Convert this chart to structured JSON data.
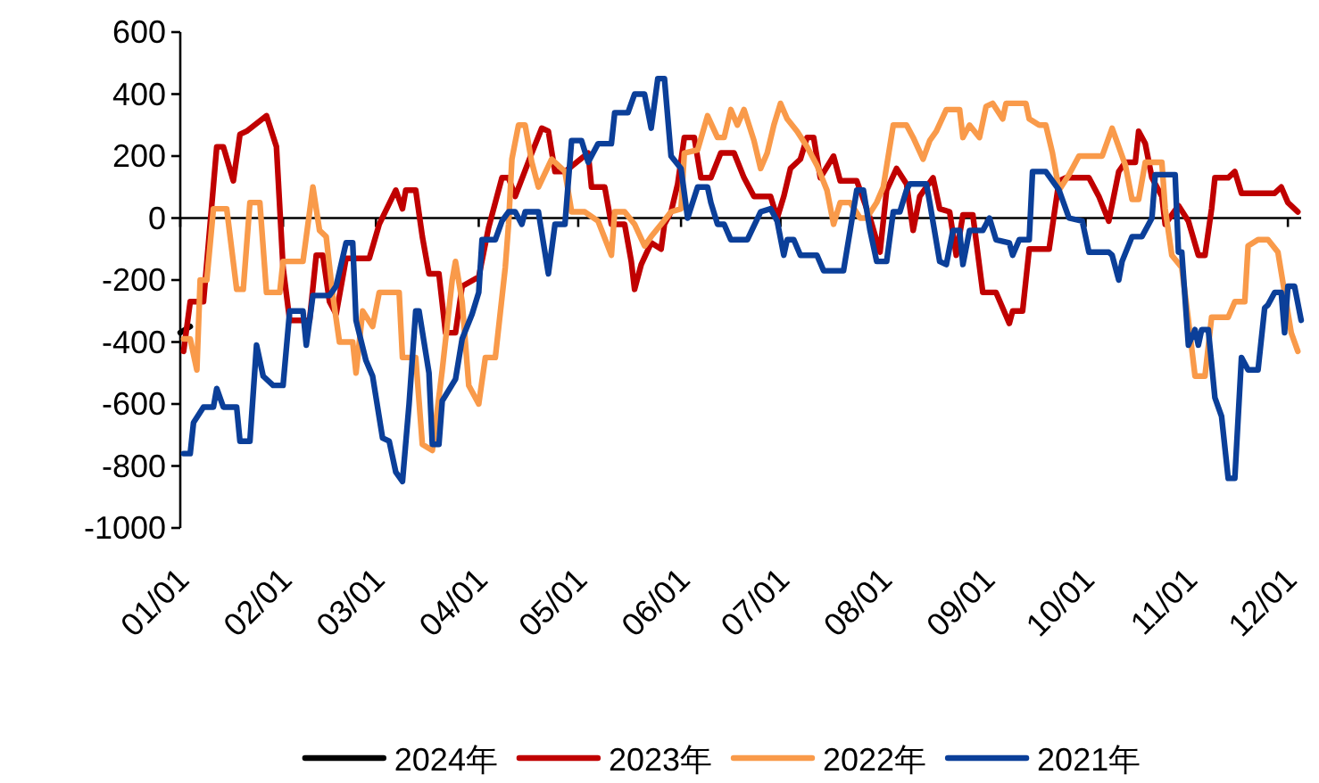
{
  "chart_data": {
    "type": "line",
    "legend": "bottom",
    "xlim": [
      "--01-01",
      "--12-05"
    ],
    "ylim": [
      -1000,
      600
    ],
    "yticks": [
      -1000,
      -800,
      -600,
      -400,
      -200,
      0,
      200,
      400,
      600
    ],
    "xticks": [
      {
        "value": "--01-01",
        "label": "01/01"
      },
      {
        "value": "--02-01",
        "label": "02/01"
      },
      {
        "value": "--03-01",
        "label": "03/01"
      },
      {
        "value": "--04-01",
        "label": "04/01"
      },
      {
        "value": "--05-01",
        "label": "05/01"
      },
      {
        "value": "--06-01",
        "label": "06/01"
      },
      {
        "value": "--07-01",
        "label": "07/01"
      },
      {
        "value": "--08-01",
        "label": "08/01"
      },
      {
        "value": "--09-01",
        "label": "09/01"
      },
      {
        "value": "--10-01",
        "label": "10/01"
      },
      {
        "value": "--11-01",
        "label": "11/01"
      },
      {
        "value": "--12-01",
        "label": "12/01"
      }
    ],
    "series": [
      {
        "name": "2024年",
        "color": "#000000",
        "x": [
          "--01-01",
          "--01-04"
        ],
        "values": [
          -370,
          -350
        ]
      },
      {
        "name": "2023年",
        "color": "#c00000",
        "x": [
          "--01-02",
          "--01-04",
          "--01-08",
          "--01-12",
          "--01-14",
          "--01-17",
          "--01-19",
          "--01-21",
          "--01-27",
          "--01-30",
          "--02-01",
          "--02-03",
          "--02-09",
          "--02-11",
          "--02-13",
          "--02-15",
          "--02-17",
          "--02-20",
          "--02-27",
          "--03-02",
          "--03-07",
          "--03-09",
          "--03-10",
          "--03-13",
          "--03-15",
          "--03-17",
          "--03-20",
          "--03-22",
          "--03-25",
          "--03-27",
          "--04-01",
          "--04-04",
          "--04-08",
          "--04-10",
          "--04-12",
          "--04-17",
          "--04-20",
          "--04-22",
          "--04-24",
          "--04-27",
          "--05-04",
          "--05-05",
          "--05-09",
          "--05-11",
          "--05-15",
          "--05-17",
          "--05-18",
          "--05-20",
          "--05-23",
          "--05-26",
          "--05-27",
          "--05-29",
          "--05-31",
          "--06-02",
          "--06-05",
          "--06-07",
          "--06-10",
          "--06-13",
          "--06-17",
          "--06-20",
          "--06-23",
          "--06-28",
          "--06-30",
          "--07-02",
          "--07-04",
          "--07-07",
          "--07-09",
          "--07-11",
          "--07-13",
          "--07-17",
          "--07-19",
          "--07-24",
          "--07-28",
          "--07-31",
          "--08-02",
          "--08-05",
          "--08-08",
          "--08-10",
          "--08-12",
          "--08-16",
          "--08-18",
          "--08-21",
          "--08-23",
          "--08-25",
          "--08-28",
          "--08-31",
          "--09-04",
          "--09-08",
          "--09-09",
          "--09-12",
          "--09-14",
          "--09-20",
          "--09-23",
          "--09-25",
          "--10-02",
          "--10-05",
          "--10-08",
          "--10-11",
          "--10-13",
          "--10-16",
          "--10-17",
          "--10-19",
          "--10-21",
          "--10-24",
          "--10-25",
          "--10-29",
          "--11-01",
          "--11-04",
          "--11-06",
          "--11-08",
          "--11-09",
          "--11-13",
          "--11-15",
          "--11-17",
          "--11-27",
          "--11-29",
          "--12-01",
          "--12-04"
        ],
        "values": [
          -430,
          -270,
          -270,
          230,
          230,
          120,
          270,
          280,
          330,
          230,
          -160,
          -330,
          -330,
          -120,
          -120,
          -270,
          -310,
          -130,
          -130,
          -20,
          90,
          30,
          90,
          90,
          -60,
          -180,
          -180,
          -370,
          -370,
          -220,
          -190,
          -30,
          130,
          130,
          70,
          210,
          290,
          280,
          150,
          150,
          210,
          100,
          100,
          -20,
          -20,
          -140,
          -230,
          -150,
          -80,
          -100,
          -20,
          20,
          110,
          260,
          260,
          130,
          130,
          210,
          210,
          130,
          70,
          70,
          0,
          70,
          160,
          190,
          260,
          260,
          130,
          200,
          120,
          120,
          0,
          -110,
          90,
          160,
          110,
          -40,
          70,
          130,
          30,
          20,
          -120,
          10,
          10,
          -240,
          -240,
          -340,
          -300,
          -300,
          -100,
          -100,
          120,
          130,
          130,
          70,
          -10,
          150,
          180,
          180,
          280,
          240,
          130,
          70,
          -20,
          40,
          -10,
          -120,
          -120,
          30,
          130,
          130,
          150,
          80,
          80,
          100,
          50,
          20
        ]
      },
      {
        "name": "2022年",
        "color": "#f99a4a",
        "x": [
          "--01-02",
          "--01-04",
          "--01-06",
          "--01-07",
          "--01-09",
          "--01-11",
          "--01-15",
          "--01-18",
          "--01-20",
          "--01-22",
          "--01-25",
          "--01-27",
          "--01-31",
          "--02-01",
          "--02-07",
          "--02-10",
          "--02-12",
          "--02-14",
          "--02-16",
          "--02-18",
          "--02-22",
          "--02-23",
          "--02-25",
          "--02-28",
          "--03-02",
          "--03-08",
          "--03-09",
          "--03-13",
          "--03-15",
          "--03-18",
          "--03-21",
          "--03-24",
          "--03-25",
          "--03-27",
          "--03-29",
          "--04-01",
          "--04-03",
          "--04-06",
          "--04-09",
          "--04-10",
          "--04-11",
          "--04-13",
          "--04-15",
          "--04-17",
          "--04-19",
          "--04-23",
          "--04-27",
          "--04-29",
          "--05-03",
          "--05-07",
          "--05-11",
          "--05-12",
          "--05-15",
          "--05-18",
          "--05-21",
          "--05-23",
          "--05-26",
          "--05-29",
          "--06-01",
          "--06-02",
          "--06-06",
          "--06-09",
          "--06-12",
          "--06-14",
          "--06-16",
          "--06-18",
          "--06-20",
          "--06-23",
          "--06-25",
          "--06-27",
          "--06-29",
          "--07-01",
          "--07-03",
          "--07-06",
          "--07-09",
          "--07-12",
          "--07-15",
          "--07-17",
          "--07-19",
          "--07-22",
          "--07-25",
          "--07-27",
          "--07-30",
          "--08-01",
          "--08-04",
          "--08-08",
          "--08-10",
          "--08-13",
          "--08-15",
          "--08-17",
          "--08-20",
          "--08-24",
          "--08-25",
          "--08-27",
          "--08-30",
          "--09-01",
          "--09-03",
          "--09-06",
          "--09-07",
          "--09-13",
          "--09-14",
          "--09-17",
          "--09-19",
          "--09-21",
          "--09-23",
          "--09-26",
          "--09-29",
          "--10-06",
          "--10-09",
          "--10-10",
          "--10-13",
          "--10-15",
          "--10-17",
          "--10-19",
          "--10-24",
          "--10-25",
          "--10-27",
          "--10-30",
          "--11-01",
          "--11-03",
          "--11-06",
          "--11-08",
          "--11-13",
          "--11-15",
          "--11-18",
          "--11-19",
          "--11-22",
          "--11-25",
          "--11-28",
          "--11-30",
          "--12-02",
          "--12-04"
        ],
        "values": [
          -390,
          -390,
          -490,
          -200,
          -200,
          30,
          30,
          -230,
          -230,
          50,
          50,
          -240,
          -240,
          -140,
          -140,
          100,
          -40,
          -60,
          -250,
          -400,
          -400,
          -500,
          -300,
          -350,
          -240,
          -240,
          -450,
          -450,
          -730,
          -750,
          -490,
          -200,
          -140,
          -270,
          -540,
          -600,
          -450,
          -450,
          -160,
          -20,
          190,
          300,
          300,
          180,
          100,
          190,
          150,
          20,
          20,
          -10,
          -120,
          20,
          20,
          -20,
          -90,
          -60,
          -20,
          20,
          30,
          210,
          220,
          330,
          260,
          260,
          350,
          300,
          350,
          250,
          160,
          210,
          300,
          370,
          320,
          280,
          230,
          170,
          90,
          -20,
          50,
          50,
          0,
          0,
          50,
          100,
          300,
          300,
          260,
          190,
          250,
          280,
          350,
          350,
          260,
          300,
          260,
          360,
          370,
          320,
          370,
          370,
          320,
          300,
          300,
          210,
          90,
          140,
          200,
          200,
          290,
          260,
          170,
          60,
          60,
          180,
          180,
          30,
          -120,
          -160,
          -330,
          -510,
          -510,
          -320,
          -320,
          -270,
          -270,
          -90,
          -70,
          -70,
          -110,
          -240,
          -370,
          -430
        ]
      },
      {
        "name": "2021年",
        "color": "#0b3f99",
        "x": [
          "--01-02",
          "--01-04",
          "--01-05",
          "--01-08",
          "--01-11",
          "--01-12",
          "--01-14",
          "--01-18",
          "--01-19",
          "--01-22",
          "--01-24",
          "--01-26",
          "--01-29",
          "--02-01",
          "--02-03",
          "--02-07",
          "--02-08",
          "--02-10",
          "--02-15",
          "--02-17",
          "--02-20",
          "--02-22",
          "--02-23",
          "--02-26",
          "--02-28",
          "--03-03",
          "--03-05",
          "--03-07",
          "--03-09",
          "--03-11",
          "--03-13",
          "--03-14",
          "--03-17",
          "--03-18",
          "--03-20",
          "--03-21",
          "--03-25",
          "--03-27",
          "--03-30",
          "--04-01",
          "--04-02",
          "--04-06",
          "--04-08",
          "--04-10",
          "--04-12",
          "--04-14",
          "--04-15",
          "--04-19",
          "--04-22",
          "--04-24",
          "--04-27",
          "--04-29",
          "--05-02",
          "--05-04",
          "--05-07",
          "--05-11",
          "--05-12",
          "--05-16",
          "--05-18",
          "--05-21",
          "--05-23",
          "--05-25",
          "--05-27",
          "--05-29",
          "--06-01",
          "--06-03",
          "--06-06",
          "--06-09",
          "--06-10",
          "--06-12",
          "--06-14",
          "--06-16",
          "--06-21",
          "--06-25",
          "--06-28",
          "--06-30",
          "--07-02",
          "--07-03",
          "--07-05",
          "--07-07",
          "--07-12",
          "--07-14",
          "--07-20",
          "--07-22",
          "--07-24",
          "--07-26",
          "--07-28",
          "--07-30",
          "--08-02",
          "--08-04",
          "--08-06",
          "--08-08",
          "--08-09",
          "--08-14",
          "--08-15",
          "--08-18",
          "--08-20",
          "--08-22",
          "--08-24",
          "--08-25",
          "--08-27",
          "--08-31",
          "--09-02",
          "--09-04",
          "--09-08",
          "--09-09",
          "--09-11",
          "--09-14",
          "--09-15",
          "--09-19",
          "--09-23",
          "--09-26",
          "--09-30",
          "--10-02",
          "--10-08",
          "--10-09",
          "--10-11",
          "--10-12",
          "--10-15",
          "--10-18",
          "--10-21",
          "--10-22",
          "--10-28",
          "--10-29",
          "--10-30",
          "--11-01",
          "--11-03",
          "--11-04",
          "--11-05",
          "--11-07",
          "--11-09",
          "--11-11",
          "--11-13",
          "--11-15",
          "--11-17",
          "--11-19",
          "--11-22",
          "--11-24",
          "--11-25",
          "--11-27",
          "--11-29",
          "--11-30",
          "--12-01",
          "--12-03",
          "--12-05"
        ],
        "values": [
          -760,
          -760,
          -660,
          -610,
          -610,
          -550,
          -610,
          -610,
          -720,
          -720,
          -410,
          -510,
          -540,
          -540,
          -300,
          -300,
          -410,
          -250,
          -250,
          -220,
          -80,
          -80,
          -330,
          -460,
          -510,
          -710,
          -720,
          -820,
          -850,
          -600,
          -300,
          -300,
          -500,
          -730,
          -730,
          -590,
          -520,
          -390,
          -310,
          -240,
          -70,
          -70,
          -10,
          20,
          20,
          -20,
          20,
          20,
          -180,
          -20,
          -20,
          250,
          250,
          180,
          240,
          240,
          340,
          340,
          400,
          400,
          290,
          450,
          450,
          200,
          160,
          0,
          100,
          100,
          50,
          -20,
          -20,
          -70,
          -70,
          20,
          30,
          -10,
          -120,
          -70,
          -70,
          -120,
          -120,
          -170,
          -170,
          -40,
          90,
          90,
          -40,
          -140,
          -140,
          20,
          20,
          90,
          110,
          110,
          50,
          -140,
          -150,
          -40,
          -40,
          -150,
          -40,
          -40,
          0,
          -70,
          -80,
          -120,
          -70,
          -70,
          150,
          150,
          90,
          0,
          -10,
          -110,
          -110,
          -120,
          -200,
          -140,
          -60,
          -60,
          0,
          140,
          140,
          -110,
          -110,
          -410,
          -360,
          -410,
          -360,
          -360,
          -580,
          -640,
          -840,
          -840,
          -450,
          -490,
          -490,
          -290,
          -280,
          -240,
          -240,
          -370,
          -220,
          -220,
          -330
        ]
      }
    ]
  }
}
